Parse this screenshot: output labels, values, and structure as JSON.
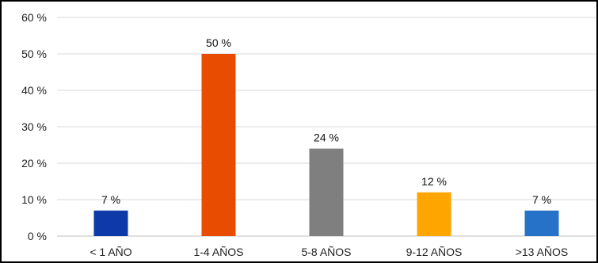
{
  "chart_data": {
    "type": "bar",
    "categories": [
      "< 1 AÑO",
      "1-4 AÑOS",
      "5-8 AÑOS",
      "9-12 AÑOS",
      ">13 AÑOS"
    ],
    "values": [
      7,
      50,
      24,
      12,
      7
    ],
    "data_labels": [
      "7 %",
      "50 %",
      "24 %",
      "12 %",
      "7 %"
    ],
    "colors": [
      "#0d3aa8",
      "#e84c00",
      "#7f7f7f",
      "#ffa500",
      "#2772c9"
    ],
    "ylim": [
      0,
      60
    ],
    "yticks": [
      0,
      10,
      20,
      30,
      40,
      50,
      60
    ],
    "ytick_labels": [
      "0 %",
      "10 %",
      "20 %",
      "30 %",
      "40 %",
      "50 %",
      "60 %"
    ],
    "title": "",
    "xlabel": "",
    "ylabel": "",
    "grid": true,
    "legend": "none"
  }
}
